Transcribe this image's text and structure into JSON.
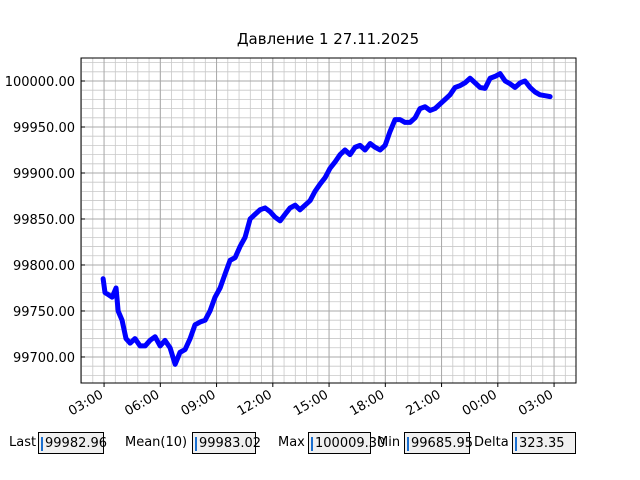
{
  "chart_data": {
    "type": "line",
    "title": "Давление 1 27.11.2025",
    "color": "#0000ff",
    "grid": true,
    "minor_grid": true,
    "xlim": [
      1.77,
      28.17
    ],
    "xticks": [
      {
        "value": 3,
        "label": "03:00"
      },
      {
        "value": 6,
        "label": "06:00"
      },
      {
        "value": 9,
        "label": "09:00"
      },
      {
        "value": 12,
        "label": "12:00"
      },
      {
        "value": 15,
        "label": "15:00"
      },
      {
        "value": 18,
        "label": "18:00"
      },
      {
        "value": 21,
        "label": "21:00"
      },
      {
        "value": 24,
        "label": "00:00"
      },
      {
        "value": 27,
        "label": "03:00"
      }
    ],
    "ylim": [
      99671.7,
      100025
    ],
    "yticks": [
      {
        "value": 99700,
        "label": "99700.00"
      },
      {
        "value": 99750,
        "label": "99750.00"
      },
      {
        "value": 99800,
        "label": "99800.00"
      },
      {
        "value": 99850,
        "label": "99850.00"
      },
      {
        "value": 99900,
        "label": "99900.00"
      },
      {
        "value": 99950,
        "label": "99950.00"
      },
      {
        "value": 100000,
        "label": "100000.00"
      }
    ],
    "x": [
      2.95,
      3.05,
      3.21,
      3.43,
      3.64,
      3.75,
      3.96,
      4.17,
      4.39,
      4.65,
      4.92,
      5.19,
      5.45,
      5.72,
      5.99,
      6.25,
      6.52,
      6.79,
      7.05,
      7.32,
      7.59,
      7.85,
      8.12,
      8.39,
      8.65,
      8.92,
      9.19,
      9.45,
      9.72,
      9.99,
      10.25,
      10.52,
      10.79,
      11.05,
      11.32,
      11.59,
      11.85,
      12.12,
      12.39,
      12.65,
      12.92,
      13.19,
      13.45,
      13.72,
      13.99,
      14.25,
      14.52,
      14.79,
      15.05,
      15.32,
      15.59,
      15.85,
      16.12,
      16.39,
      16.65,
      16.92,
      17.19,
      17.45,
      17.72,
      17.99,
      18.25,
      18.52,
      18.79,
      19.05,
      19.32,
      19.59,
      19.85,
      20.12,
      20.39,
      20.65,
      20.92,
      21.19,
      21.45,
      21.72,
      21.99,
      22.25,
      22.52,
      22.79,
      23.05,
      23.32,
      23.59,
      23.85,
      24.12,
      24.39,
      24.65,
      24.92,
      25.19,
      25.45,
      25.72,
      25.99,
      26.25,
      26.52,
      26.79
    ],
    "values": [
      99785,
      99770,
      99768,
      99765,
      99775,
      99750,
      99740,
      99720,
      99715,
      99720,
      99712,
      99712,
      99718,
      99722,
      99712,
      99718,
      99710,
      99692,
      99705,
      99708,
      99720,
      99735,
      99738,
      99740,
      99750,
      99765,
      99775,
      99790,
      99805,
      99808,
      99820,
      99830,
      99850,
      99855,
      99860,
      99862,
      99858,
      99852,
      99848,
      99855,
      99862,
      99865,
      99860,
      99865,
      99870,
      99880,
      99888,
      99895,
      99905,
      99912,
      99920,
      99925,
      99920,
      99928,
      99930,
      99925,
      99932,
      99928,
      99925,
      99930,
      99945,
      99958,
      99958,
      99955,
      99955,
      99960,
      99970,
      99972,
      99968,
      99970,
      99975,
      99980,
      99985,
      99993,
      99995,
      99998,
      100003,
      99998,
      99993,
      99992,
      100003,
      100005,
      100008,
      100000,
      99997,
      99993,
      99998,
      100000,
      99993,
      99988,
      99985,
      99984,
      99983
    ]
  },
  "fields": [
    {
      "label": "Last",
      "value": "99982.96"
    },
    {
      "label": "Mean(10)",
      "value": "99983.02"
    },
    {
      "label": "Max",
      "value": "100009.30"
    },
    {
      "label": "Min",
      "value": "99685.95"
    },
    {
      "label": "Delta",
      "value": "323.35"
    }
  ]
}
